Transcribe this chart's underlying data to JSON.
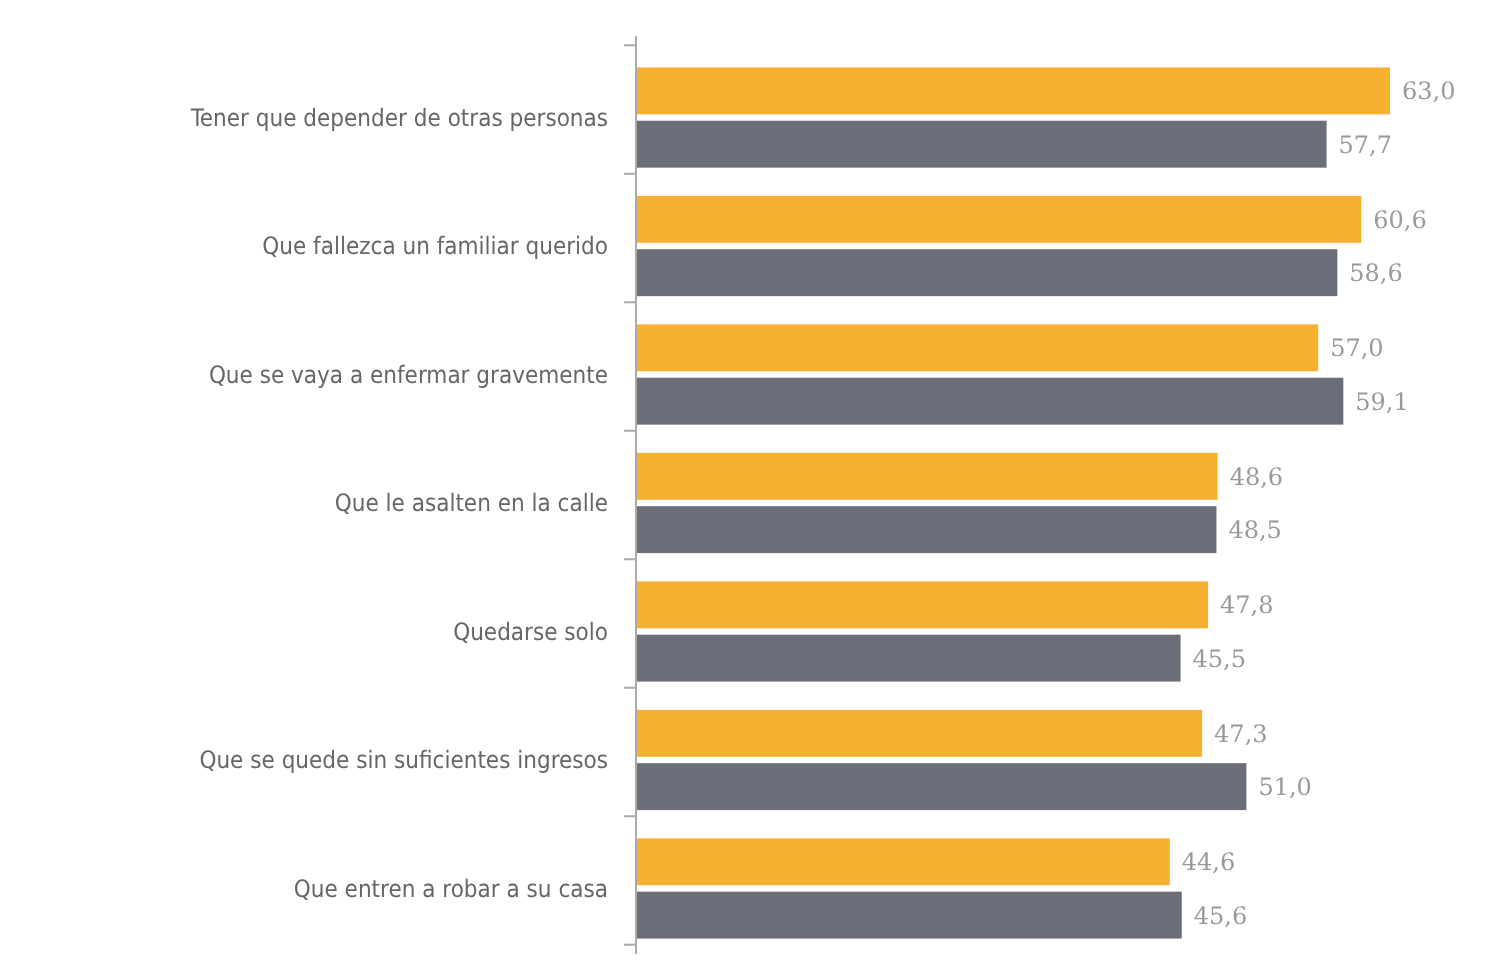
{
  "chart_data": {
    "type": "bar",
    "orientation": "horizontal",
    "categories": [
      "Tener que depender de otras personas",
      "Que fallezca un familiar querido",
      "Que se vaya a enfermar gravemente",
      "Que le asalten en la calle",
      "Quedarse solo",
      "Que se quede sin suficientes ingresos",
      "Que entren a robar a su casa"
    ],
    "series": [
      {
        "color": "#f6b130",
        "values": [
          63.0,
          60.6,
          57.0,
          48.6,
          47.8,
          47.3,
          44.6
        ],
        "value_labels": [
          "63,0",
          "60,6",
          "57,0",
          "48,6",
          "47,8",
          "47,3",
          "44,6"
        ]
      },
      {
        "color": "#6b6e78",
        "values": [
          57.7,
          58.6,
          59.1,
          48.5,
          45.5,
          51.0,
          45.6
        ],
        "value_labels": [
          "57,7",
          "58,6",
          "59,1",
          "48,5",
          "45,5",
          "51,0",
          "45,6"
        ]
      }
    ]
  }
}
